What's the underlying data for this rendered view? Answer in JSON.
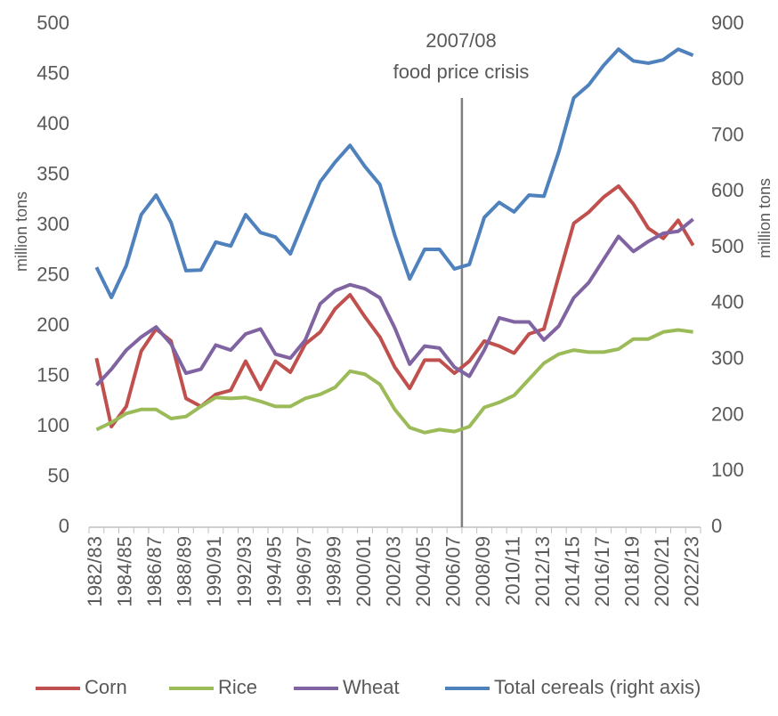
{
  "chart_data": {
    "type": "line",
    "categories": [
      "1982/83",
      null,
      "1984/85",
      null,
      "1986/87",
      null,
      "1988/89",
      null,
      "1990/91",
      null,
      "1992/93",
      null,
      "1994/95",
      null,
      "1996/97",
      null,
      "1998/99",
      null,
      "2000/01",
      null,
      "2002/03",
      null,
      "2004/05",
      null,
      "2006/07",
      null,
      "2008/09",
      null,
      "2010/11",
      null,
      "2012/13",
      null,
      "2014/15",
      null,
      "2016/17",
      null,
      "2018/19",
      null,
      "2020/21",
      null,
      "2022/23"
    ],
    "series": [
      {
        "name": "Corn",
        "color": "#c0504d",
        "values": [
          168,
          100,
          120,
          175,
          197,
          185,
          128,
          120,
          132,
          136,
          165,
          137,
          165,
          154,
          182,
          194,
          217,
          231,
          209,
          189,
          159,
          138,
          166,
          166,
          153,
          165,
          185,
          180,
          173,
          192,
          197,
          250,
          302,
          313,
          328,
          339,
          321,
          297,
          287,
          305,
          280
        ]
      },
      {
        "name": "Rice",
        "color": "#9bbb59",
        "values": [
          97,
          104,
          113,
          117,
          117,
          108,
          110,
          120,
          129,
          128,
          129,
          125,
          120,
          120,
          128,
          132,
          139,
          155,
          152,
          142,
          117,
          99,
          94,
          97,
          95,
          100,
          119,
          124,
          131,
          147,
          163,
          172,
          176,
          174,
          174,
          177,
          187,
          187,
          194,
          196,
          194
        ]
      },
      {
        "name": "Wheat",
        "color": "#8064a2",
        "values": [
          141,
          157,
          176,
          189,
          199,
          182,
          153,
          157,
          181,
          176,
          192,
          197,
          172,
          168,
          186,
          222,
          235,
          241,
          237,
          228,
          198,
          162,
          180,
          178,
          159,
          150,
          176,
          208,
          204,
          204,
          186,
          200,
          228,
          243,
          266,
          289,
          274,
          284,
          292,
          294,
          306
        ]
      },
      {
        "name": "Total cereals (right axis)",
        "color": "#4f81bd",
        "axis": "y2",
        "values": [
          465,
          411,
          468,
          559,
          594,
          545,
          459,
          460,
          510,
          503,
          559,
          527,
          519,
          489,
          554,
          618,
          653,
          683,
          645,
          613,
          522,
          444,
          497,
          497,
          462,
          470,
          554,
          581,
          564,
          594,
          592,
          672,
          768,
          791,
          826,
          855,
          834,
          830,
          836,
          855,
          844
        ]
      }
    ],
    "ylabel": "million tons",
    "y2label": "million tons",
    "ylim": [
      0,
      500
    ],
    "yticks": [
      0,
      50,
      100,
      150,
      200,
      250,
      300,
      350,
      400,
      450,
      500
    ],
    "y2lim": [
      0,
      900
    ],
    "y2ticks": [
      0,
      100,
      200,
      300,
      400,
      500,
      600,
      700,
      800,
      900
    ],
    "annotation": [
      "2007/08",
      "food price crisis"
    ],
    "grid": false
  }
}
